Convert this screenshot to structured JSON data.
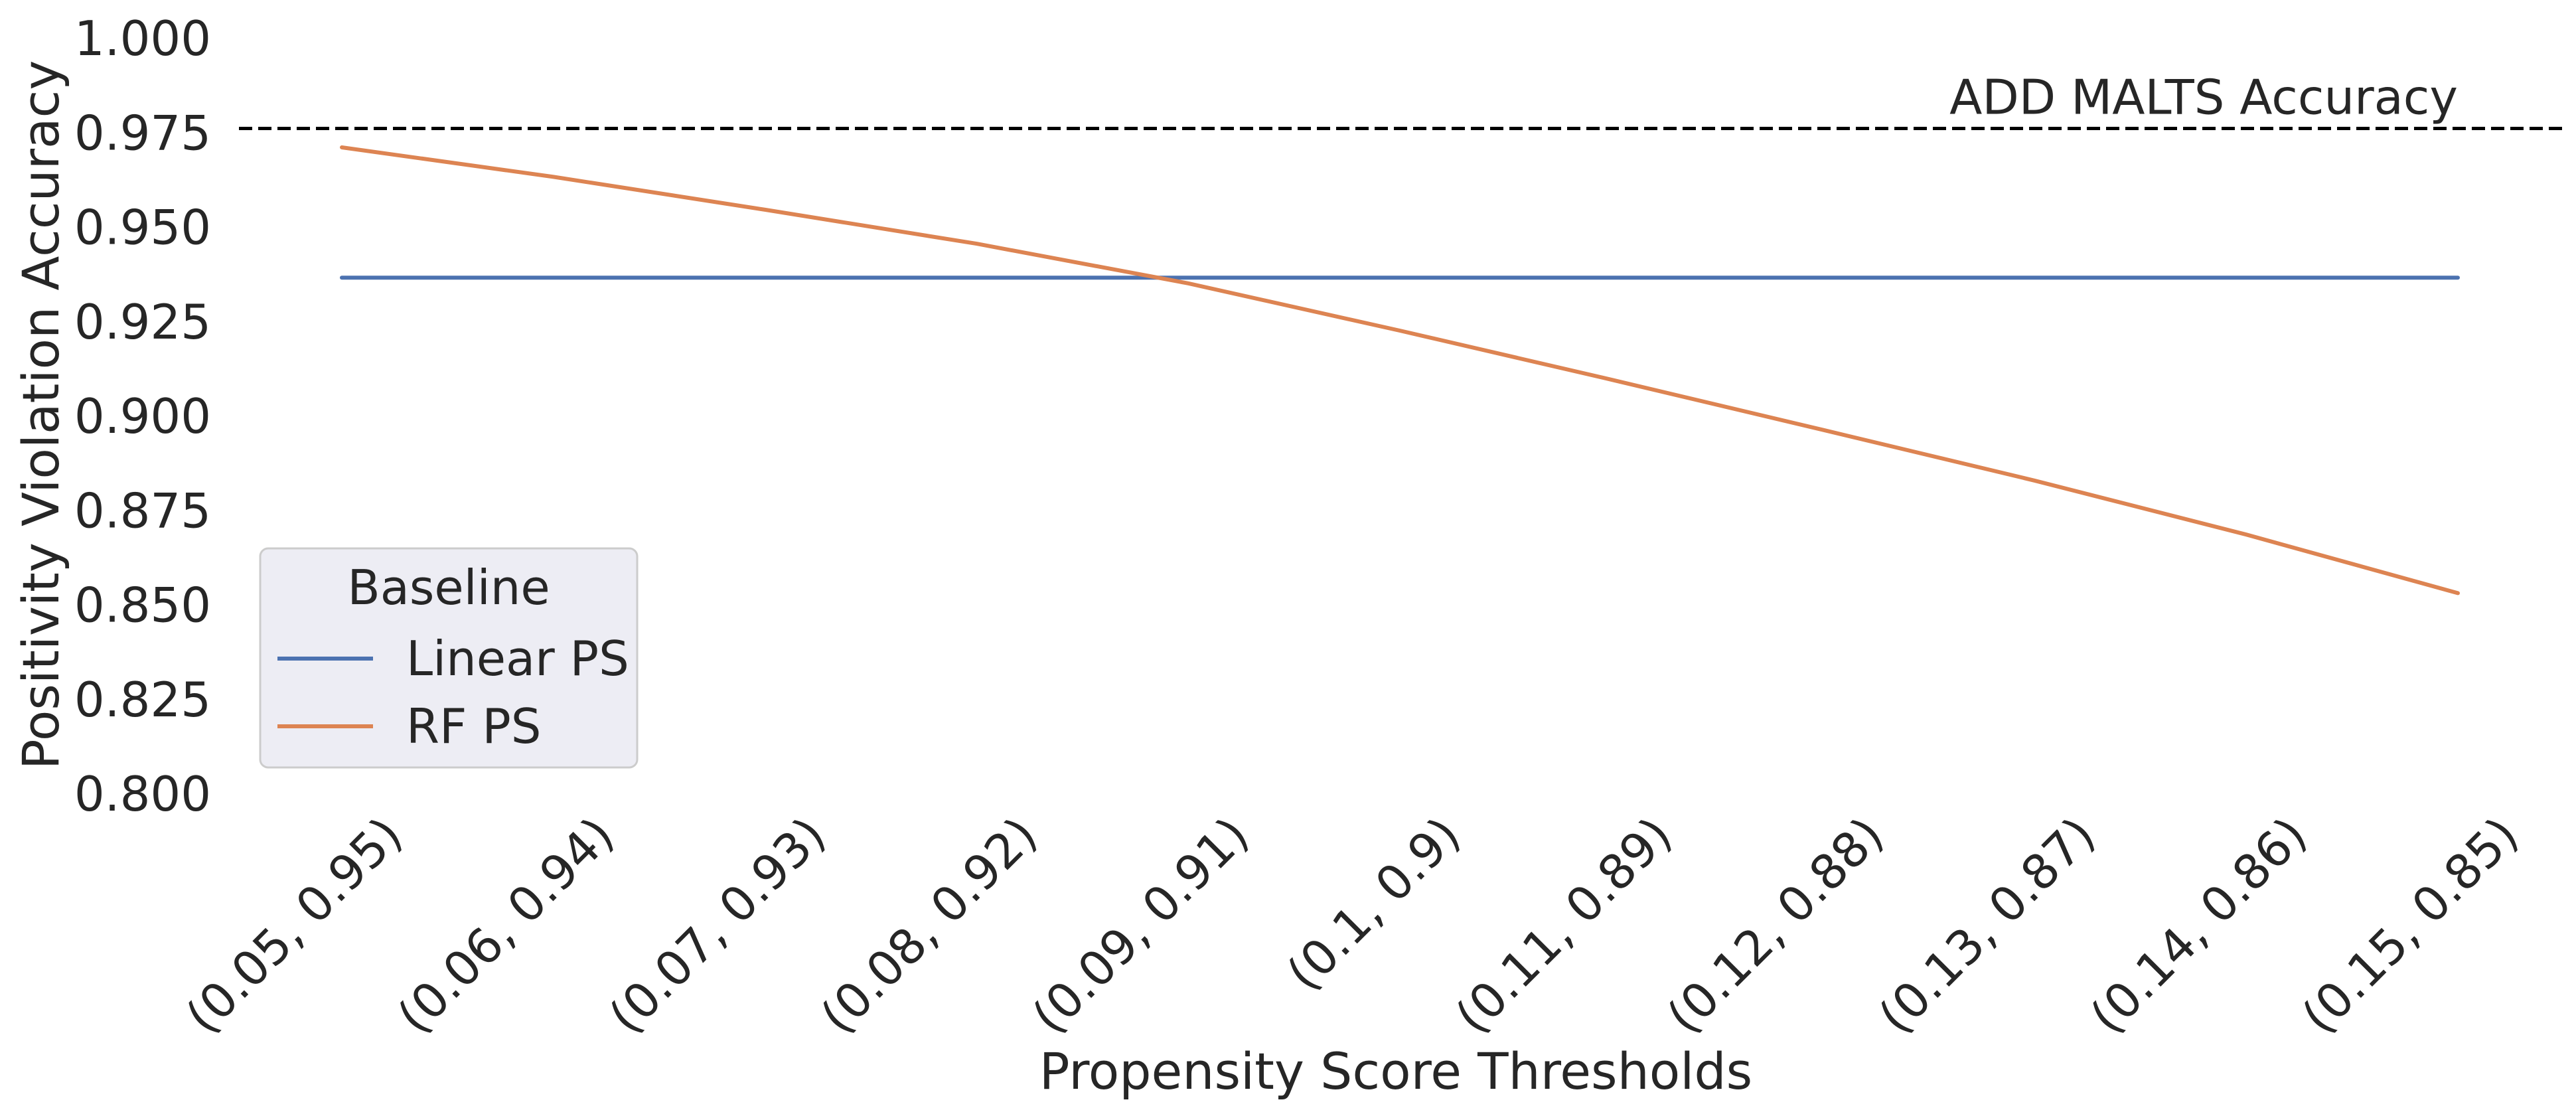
{
  "chart_data": {
    "type": "line",
    "title": "",
    "xlabel": "Propensity Score Thresholds",
    "ylabel": "Positivity Violation Accuracy",
    "categories": [
      "(0.05, 0.95)",
      "(0.06, 0.94)",
      "(0.07, 0.93)",
      "(0.08, 0.92)",
      "(0.09, 0.91)",
      "(0.1, 0.9)",
      "(0.11, 0.89)",
      "(0.12, 0.88)",
      "(0.13, 0.87)",
      "(0.14, 0.86)",
      "(0.15, 0.85)"
    ],
    "yticks": [
      "0.800",
      "0.825",
      "0.850",
      "0.875",
      "0.900",
      "0.925",
      "0.950",
      "0.975",
      "1.000"
    ],
    "ylim": [
      0.8,
      1.0
    ],
    "grid": false,
    "legend": {
      "title": "Baseline",
      "placement": "lower-left"
    },
    "series": [
      {
        "name": "Linear PS",
        "color": "#4c72b0",
        "values": [
          0.9365,
          0.9365,
          0.9365,
          0.9365,
          0.9365,
          0.9365,
          0.9365,
          0.9365,
          0.9365,
          0.9365,
          0.9365
        ]
      },
      {
        "name": "RF PS",
        "color": "#dd8452",
        "values": [
          0.971,
          0.9632,
          0.9545,
          0.9455,
          0.935,
          0.9225,
          0.9095,
          0.8962,
          0.8828,
          0.8685,
          0.853
        ]
      }
    ],
    "reference_line": {
      "label": "ADD MALTS Accuracy",
      "value": 0.976,
      "color": "#000000",
      "style": "dashed"
    }
  }
}
